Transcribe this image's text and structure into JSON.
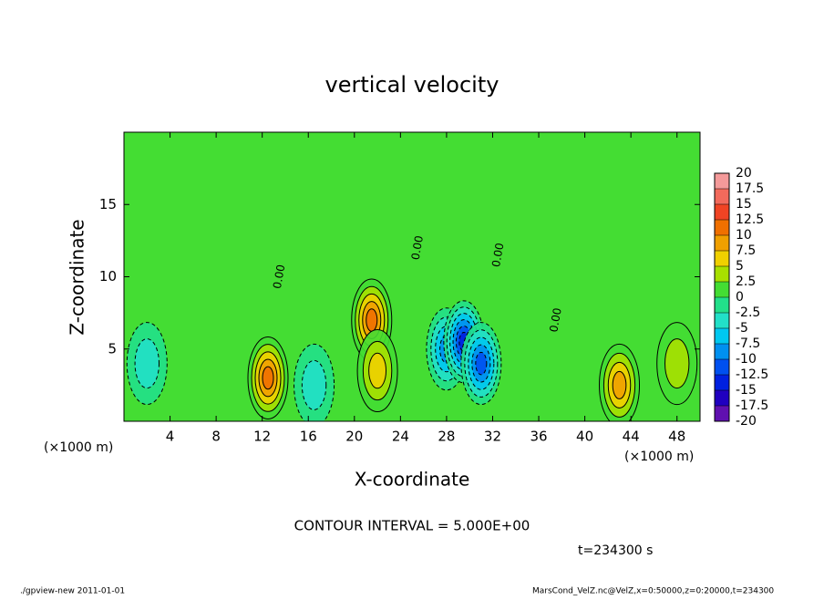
{
  "chart_data": {
    "type": "contour",
    "title": "vertical velocity",
    "x_label": "X-coordinate",
    "y_label": "Z-coordinate",
    "x_unit": "(×1000 m)",
    "xlim": [
      0,
      50
    ],
    "ylim": [
      0,
      20
    ],
    "xticks": [
      4,
      8,
      12,
      16,
      20,
      24,
      28,
      32,
      36,
      40,
      44,
      48
    ],
    "yticks": [
      5,
      10,
      15
    ],
    "colorbar": {
      "levels": [
        20,
        17.5,
        15,
        12.5,
        10,
        7.5,
        5,
        2.5,
        0,
        -2.5,
        -5,
        -7.5,
        -10,
        -12.5,
        -15,
        -17.5,
        -20
      ],
      "colors": [
        "#f49a9a",
        "#f26a5c",
        "#f04424",
        "#f07000",
        "#f0a000",
        "#f0d000",
        "#a8e000",
        "#44dd33",
        "#22e08a",
        "#22e0c8",
        "#00c8f0",
        "#0090f0",
        "#0050f0",
        "#0020e0",
        "#2000c0",
        "#6010b0"
      ]
    },
    "features": [
      {
        "x": 12.5,
        "z": 3,
        "value": 12.5
      },
      {
        "x": 21.5,
        "z": 7,
        "value": 12.5
      },
      {
        "x": 22,
        "z": 3.5,
        "value": 7.5
      },
      {
        "x": 43,
        "z": 2.5,
        "value": 10
      },
      {
        "x": 48,
        "z": 4,
        "value": 5
      },
      {
        "x": 28,
        "z": 5,
        "value": -10
      },
      {
        "x": 29.5,
        "z": 5.5,
        "value": -15
      },
      {
        "x": 31,
        "z": 4,
        "value": -12.5
      },
      {
        "x": 16.5,
        "z": 2.5,
        "value": -5
      },
      {
        "x": 2,
        "z": 4,
        "value": -5
      }
    ],
    "contour_label": "0.00",
    "annotation": "CONTOUR INTERVAL = 5.000E+00",
    "time": "t=234300 s",
    "footer_left": "./gpview-new  2011-01-01",
    "footer_right": "MarsCond_VelZ.nc@VelZ,x=0:50000,z=0:20000,t=234300"
  }
}
